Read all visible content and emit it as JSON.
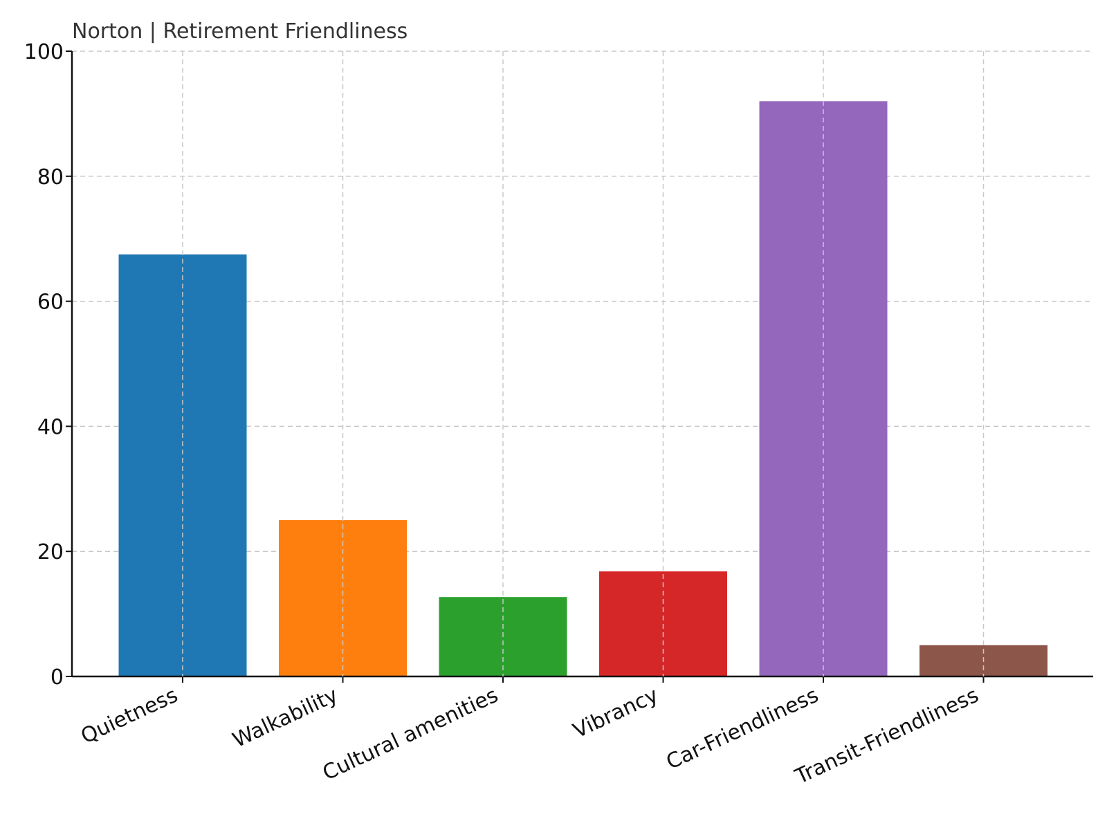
{
  "chart_data": {
    "type": "bar",
    "title": "Norton | Retirement Friendliness",
    "xlabel": "",
    "ylabel": "",
    "categories": [
      "Quietness",
      "Walkability",
      "Cultural amenities",
      "Vibrancy",
      "Car-Friendliness",
      "Transit-Friendliness"
    ],
    "values": [
      67.5,
      25,
      12.7,
      16.8,
      92,
      5
    ],
    "colors": [
      "#1f77b4",
      "#ff7f0e",
      "#2ca02c",
      "#d62728",
      "#9467bd",
      "#8c564b"
    ],
    "ylim": [
      0,
      100
    ],
    "yticks": [
      "0",
      "20",
      "40",
      "60",
      "80",
      "100"
    ],
    "grid": true,
    "legend": "none"
  }
}
